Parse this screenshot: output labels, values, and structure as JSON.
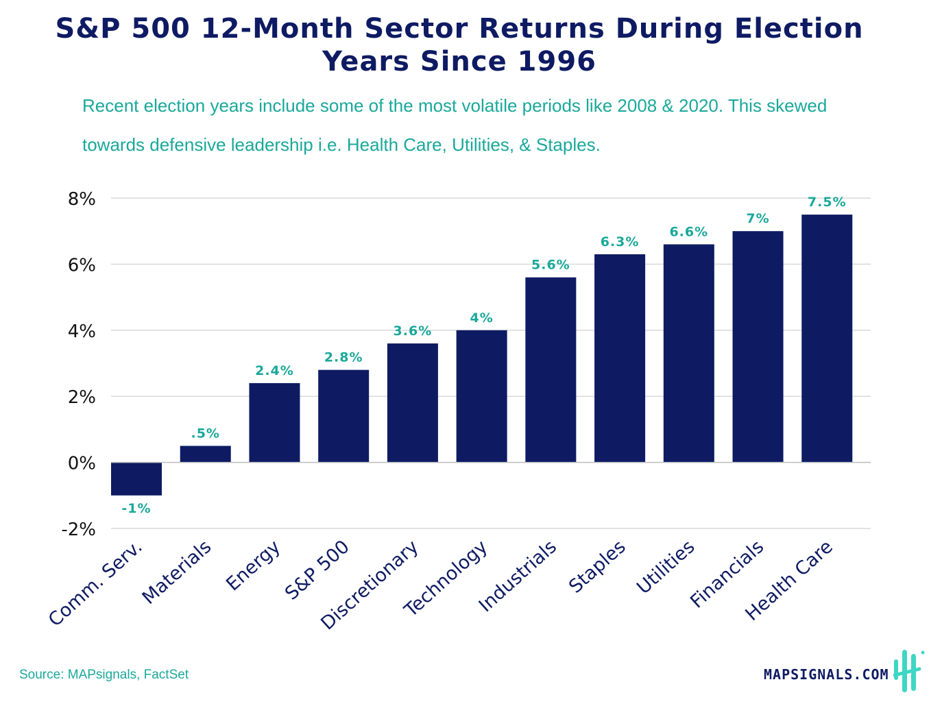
{
  "header": {
    "title_line1": "S&P 500 12-Month Sector Returns During Election",
    "title_line2": "Years Since 1996",
    "subtitle": "Recent election years include some of the most volatile periods like 2008 & 2020. This skewed towards defensive leadership i.e. Health Care, Utilities, & Staples."
  },
  "footer": {
    "source": "Source: MAPsignals, FactSet",
    "brand": "MAPSIGNALS.COM",
    "logo_icon": "mapsignals-logo-icon"
  },
  "colors": {
    "bar": "#0e1b63",
    "label": "#1aa89a",
    "grid": "#d9d9d9",
    "axis_text": "#111111"
  },
  "chart_data": {
    "type": "bar",
    "title": "S&P 500 12-Month Sector Returns During Election Years Since 1996",
    "xlabel": "",
    "ylabel": "",
    "categories": [
      "Comm. Serv.",
      "Materials",
      "Energy",
      "S&P 500",
      "Discretionary",
      "Technology",
      "Industrials",
      "Staples",
      "Utilities",
      "Financials",
      "Health Care"
    ],
    "values": [
      -1,
      0.5,
      2.4,
      2.8,
      3.6,
      4,
      5.6,
      6.3,
      6.6,
      7,
      7.5
    ],
    "value_labels": [
      "-1%",
      ".5%",
      "2.4%",
      "2.8%",
      "3.6%",
      "4%",
      "5.6%",
      "6.3%",
      "6.6%",
      "7%",
      "7.5%"
    ],
    "yticks": [
      -2,
      0,
      2,
      4,
      6,
      8
    ],
    "ytick_labels": [
      "-2%",
      "0%",
      "2%",
      "4%",
      "6%",
      "8%"
    ],
    "ylim": [
      -2,
      8
    ],
    "grid": true,
    "legend": "none"
  }
}
